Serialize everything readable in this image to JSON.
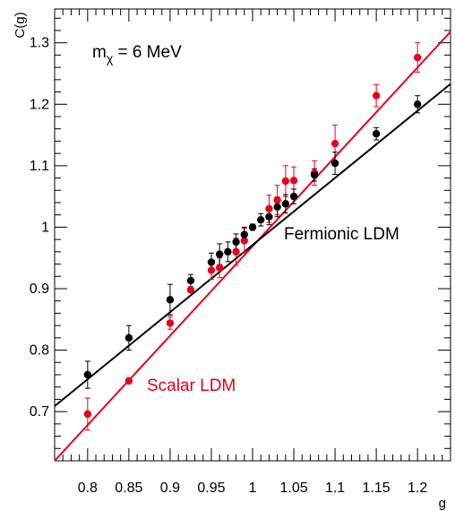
{
  "chart_data": {
    "type": "scatter",
    "title": "",
    "xlabel": "g",
    "ylabel": "C(g)",
    "xlim": [
      0.76,
      1.24
    ],
    "ylim": [
      0.62,
      1.355
    ],
    "grid": false,
    "legend": "none",
    "xticks": [
      "0.8",
      "0.85",
      "0.9",
      "0.95",
      "1",
      "1.05",
      "1.1",
      "1.15",
      "1.2"
    ],
    "yticks": [
      "0.7",
      "0.8",
      "0.9",
      "1",
      "1.1",
      "1.2",
      "1.3"
    ],
    "annotations": {
      "mass_prefix": "m",
      "mass_sub": "χ",
      "mass_value": " = 6 MeV",
      "fermionic": "Fermionic LDM",
      "scalar": "Scalar LDM"
    },
    "series": [
      {
        "name": "Fermionic LDM",
        "color": "#000000",
        "fit": [
          [
            0.76,
            0.709
          ],
          [
            1.24,
            1.233
          ]
        ],
        "points": [
          {
            "x": 0.8,
            "y": 0.76,
            "err": 0.022
          },
          {
            "x": 0.85,
            "y": 0.82,
            "err": 0.02
          },
          {
            "x": 0.9,
            "y": 0.882,
            "err": 0.025
          },
          {
            "x": 0.925,
            "y": 0.913,
            "err": 0.01
          },
          {
            "x": 0.95,
            "y": 0.943,
            "err": 0.015
          },
          {
            "x": 0.96,
            "y": 0.956,
            "err": 0.017
          },
          {
            "x": 0.97,
            "y": 0.96,
            "err": 0.016
          },
          {
            "x": 0.98,
            "y": 0.976,
            "err": 0.013
          },
          {
            "x": 0.99,
            "y": 0.988,
            "err": 0.012
          },
          {
            "x": 1.0,
            "y": 1.0,
            "err": 0.005
          },
          {
            "x": 1.01,
            "y": 1.012,
            "err": 0.01
          },
          {
            "x": 1.02,
            "y": 1.017,
            "err": 0.013
          },
          {
            "x": 1.03,
            "y": 1.033,
            "err": 0.016
          },
          {
            "x": 1.04,
            "y": 1.038,
            "err": 0.015
          },
          {
            "x": 1.05,
            "y": 1.05,
            "err": 0.012
          },
          {
            "x": 1.075,
            "y": 1.085,
            "err": 0.01
          },
          {
            "x": 1.1,
            "y": 1.104,
            "err": 0.018
          },
          {
            "x": 1.15,
            "y": 1.152,
            "err": 0.01
          },
          {
            "x": 1.2,
            "y": 1.2,
            "err": 0.014
          }
        ]
      },
      {
        "name": "Scalar LDM",
        "color": "#e8001c",
        "fit": [
          [
            0.76,
            0.62
          ],
          [
            1.24,
            1.318
          ]
        ],
        "points": [
          {
            "x": 0.8,
            "y": 0.696,
            "err": 0.026
          },
          {
            "x": 0.85,
            "y": 0.75,
            "err": 0.0
          },
          {
            "x": 0.9,
            "y": 0.844,
            "err": 0.01
          },
          {
            "x": 0.925,
            "y": 0.898,
            "err": 0.0
          },
          {
            "x": 0.95,
            "y": 0.93,
            "err": 0.015
          },
          {
            "x": 0.96,
            "y": 0.934,
            "err": 0.016
          },
          {
            "x": 0.98,
            "y": 0.96,
            "err": 0.022
          },
          {
            "x": 0.99,
            "y": 0.978,
            "err": 0.02
          },
          {
            "x": 1.02,
            "y": 1.03,
            "err": 0.022
          },
          {
            "x": 1.03,
            "y": 1.044,
            "err": 0.024
          },
          {
            "x": 1.04,
            "y": 1.075,
            "err": 0.025
          },
          {
            "x": 1.05,
            "y": 1.076,
            "err": 0.022
          },
          {
            "x": 1.075,
            "y": 1.088,
            "err": 0.02
          },
          {
            "x": 1.1,
            "y": 1.136,
            "err": 0.03
          },
          {
            "x": 1.15,
            "y": 1.214,
            "err": 0.018
          },
          {
            "x": 1.2,
            "y": 1.276,
            "err": 0.024
          }
        ]
      }
    ]
  }
}
